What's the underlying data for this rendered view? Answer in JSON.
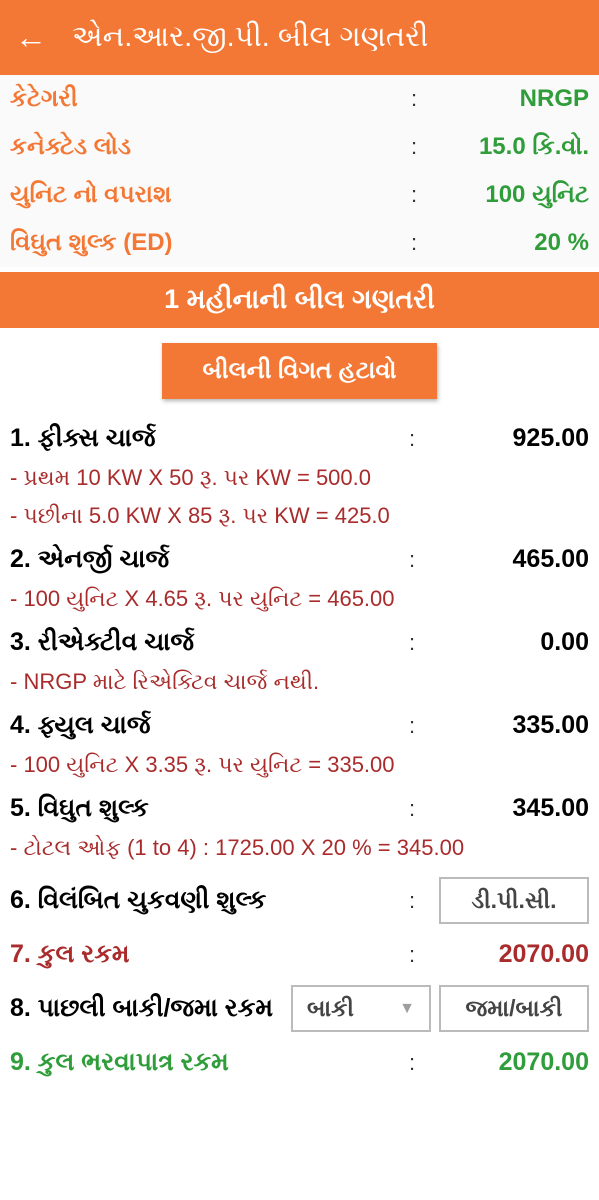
{
  "header": {
    "title": "એન.આર.જી.પી. બીલ ગણતરી"
  },
  "info": {
    "category_label": "કેટેગરી",
    "category_value": "NRGP",
    "load_label": "કનેક્ટેડ લોડ",
    "load_value": "15.0 કિ.વો.",
    "unit_label": "યુનિટ નો વપરાશ",
    "unit_value": "100 યુનિટ",
    "ed_label": "વિઘુત શુલ્ક (ED)",
    "ed_value": "20 %"
  },
  "banner": "1 મહીનાની બીલ ગણતરી",
  "clear_button": "બીલની વિગત હટાવો",
  "rows": {
    "r1_label": "1. ફીક્સ ચાર્જ",
    "r1_value": "925.00",
    "r1_sub1": "- પ્રથમ  10 KW X 50 રૂ. પર KW = 500.0",
    "r1_sub2": "- પછીના  5.0 KW X 85 રૂ. પર KW = 425.0",
    "r2_label": "2. એનર્જી ચાર્જ",
    "r2_value": "465.00",
    "r2_sub1": "- 100  યુનિટ X 4.65  રૂ. પર યુનિટ = 465.00",
    "r3_label": "3. રીએક્ટીવ ચાર્જ",
    "r3_value": "0.00",
    "r3_sub1": " - NRGP માટે રિએક્ટિવ ચાર્જ નથી.",
    "r4_label": "4. ફ્યુલ ચાર્જ",
    "r4_value": "335.00",
    "r4_sub1": "- 100  યુનિટ X 3.35  રૂ. પર યુનિટ = 335.00",
    "r5_label": "5. વિઘુત શુલ્ક",
    "r5_value": "345.00",
    "r5_sub1": "- ટોટલ ઓફ (1 to 4) :  1725.00 X 20 % = 345.00",
    "r6_label": "6. વિલંબિત ચુકવણી શુલ્ક",
    "r6_btn": "ડી.પી.સી.",
    "r7_label": "7. કુલ રકમ",
    "r7_value": "2070.00",
    "r8_label": "8. પાછલી બાકી/જમા રકમ",
    "r8_select": "બાકી",
    "r8_btn": "જમા/બાકી",
    "r9_label": "9. કુલ ભરવાપાત્ર રકમ",
    "r9_value": "2070.00"
  },
  "colors": {
    "primary": "#f47835",
    "green": "#2e9d3a",
    "red": "#a92b2b"
  }
}
